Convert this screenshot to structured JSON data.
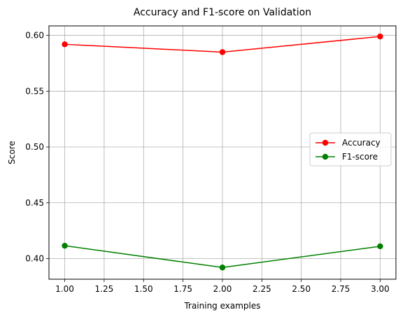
{
  "chart_data": {
    "type": "line",
    "title": "Accuracy and F1-score on Validation",
    "xlabel": "Training examples",
    "ylabel": "Score",
    "x": [
      1.0,
      2.0,
      3.0
    ],
    "xlim": [
      0.9,
      3.1
    ],
    "ylim": [
      0.3815,
      0.6085
    ],
    "x_ticks": [
      1.0,
      1.25,
      1.5,
      1.75,
      2.0,
      2.25,
      2.5,
      2.75,
      3.0
    ],
    "x_tick_labels": [
      "1.00",
      "1.25",
      "1.50",
      "1.75",
      "2.00",
      "2.25",
      "2.50",
      "2.75",
      "3.00"
    ],
    "y_ticks": [
      0.4,
      0.45,
      0.5,
      0.55,
      0.6
    ],
    "y_tick_labels": [
      "0.40",
      "0.45",
      "0.50",
      "0.55",
      "0.60"
    ],
    "grid": true,
    "legend_position": "center-right",
    "series": [
      {
        "name": "Accuracy",
        "color": "#ff0000",
        "marker": "circle",
        "values": [
          0.592,
          0.585,
          0.599
        ]
      },
      {
        "name": "F1-score",
        "color": "#008000",
        "marker": "circle",
        "values": [
          0.4115,
          0.392,
          0.411
        ]
      }
    ]
  }
}
